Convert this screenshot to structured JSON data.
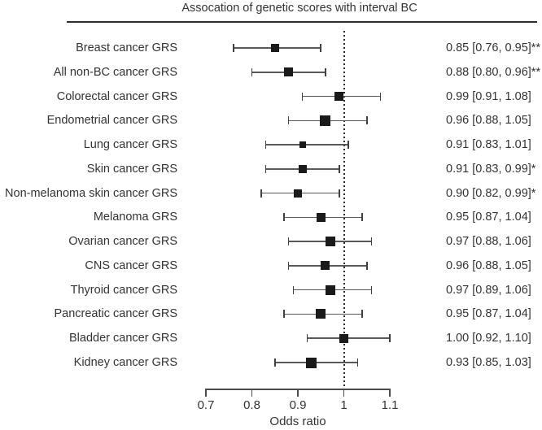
{
  "chart_data": {
    "type": "forest",
    "title": "Assocation of genetic scores with interval BC",
    "xlabel": "Odds ratio",
    "xlim": [
      0.7,
      1.1
    ],
    "x_ticks": [
      0.7,
      0.8,
      0.9,
      1,
      1.1
    ],
    "x_tick_labels": [
      "0.7",
      "0.8",
      "0.9",
      "1",
      "1.1"
    ],
    "reference_line": 1,
    "grid": false,
    "legend": "none",
    "rows": [
      {
        "label": "Breast cancer GRS",
        "or": 0.85,
        "ci_low": 0.76,
        "ci_high": 0.95,
        "value_text": "0.85 [0.76, 0.95]**",
        "marker_size": 10
      },
      {
        "label": "All non-BC cancer GRS",
        "or": 0.88,
        "ci_low": 0.8,
        "ci_high": 0.96,
        "value_text": "0.88 [0.80, 0.96]**",
        "marker_size": 11
      },
      {
        "label": "Colorectal cancer GRS",
        "or": 0.99,
        "ci_low": 0.91,
        "ci_high": 1.08,
        "value_text": "0.99 [0.91, 1.08]",
        "marker_size": 11
      },
      {
        "label": "Endometrial cancer GRS",
        "or": 0.96,
        "ci_low": 0.88,
        "ci_high": 1.05,
        "value_text": "0.96 [0.88, 1.05]",
        "marker_size": 13
      },
      {
        "label": "Lung cancer GRS",
        "or": 0.91,
        "ci_low": 0.83,
        "ci_high": 1.01,
        "value_text": "0.91 [0.83, 1.01]",
        "marker_size": 8
      },
      {
        "label": "Skin cancer GRS",
        "or": 0.91,
        "ci_low": 0.83,
        "ci_high": 0.99,
        "value_text": "0.91 [0.83, 0.99]*",
        "marker_size": 10
      },
      {
        "label": "Non-melanoma skin cancer GRS",
        "or": 0.9,
        "ci_low": 0.82,
        "ci_high": 0.99,
        "value_text": "0.90 [0.82, 0.99]*",
        "marker_size": 10
      },
      {
        "label": "Melanoma GRS",
        "or": 0.95,
        "ci_low": 0.87,
        "ci_high": 1.04,
        "value_text": "0.95 [0.87, 1.04]",
        "marker_size": 11
      },
      {
        "label": "Ovarian cancer GRS",
        "or": 0.97,
        "ci_low": 0.88,
        "ci_high": 1.06,
        "value_text": "0.97 [0.88, 1.06]",
        "marker_size": 12
      },
      {
        "label": "CNS cancer GRS",
        "or": 0.96,
        "ci_low": 0.88,
        "ci_high": 1.05,
        "value_text": "0.96 [0.88, 1.05]",
        "marker_size": 11
      },
      {
        "label": "Thyroid cancer GRS",
        "or": 0.97,
        "ci_low": 0.89,
        "ci_high": 1.06,
        "value_text": "0.97 [0.89, 1.06]",
        "marker_size": 12
      },
      {
        "label": "Pancreatic cancer GRS",
        "or": 0.95,
        "ci_low": 0.87,
        "ci_high": 1.04,
        "value_text": "0.95 [0.87, 1.04]",
        "marker_size": 12
      },
      {
        "label": "Bladder cancer GRS",
        "or": 1.0,
        "ci_low": 0.92,
        "ci_high": 1.1,
        "value_text": "1.00 [0.92, 1.10]",
        "marker_size": 11
      },
      {
        "label": "Kidney cancer GRS",
        "or": 0.93,
        "ci_low": 0.85,
        "ci_high": 1.03,
        "value_text": "0.93 [0.85, 1.03]",
        "marker_size": 13
      }
    ]
  },
  "colors": {
    "text": "#333333",
    "top_rule": "#2e2e2e",
    "whisker_line": "#595959",
    "whisker_cap": "#404040",
    "marker": "#1a1a1a",
    "axis": "#4a4a4a",
    "reference_dots": "#2b2b2b",
    "background": "#ffffff"
  }
}
